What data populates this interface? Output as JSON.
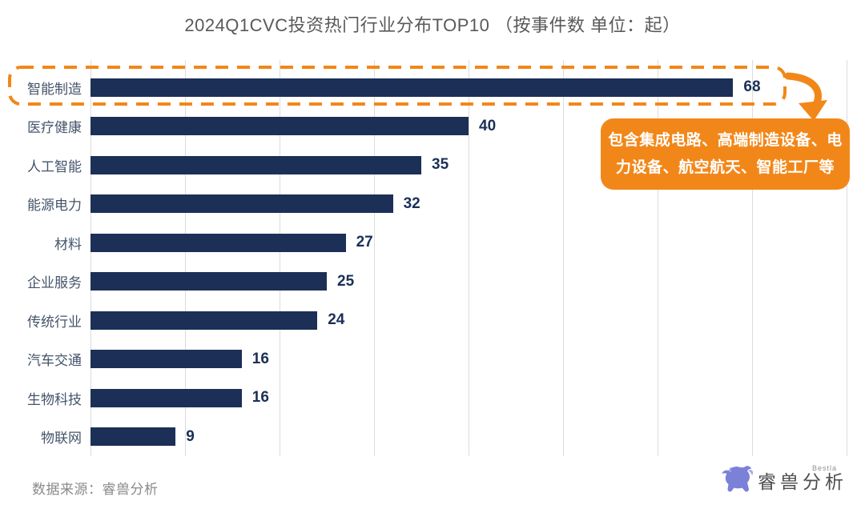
{
  "title": "2024Q1CVC投资热门行业分布TOP10 （按事件数 单位：起）",
  "chart_data": {
    "type": "bar",
    "orientation": "horizontal",
    "title": "2024Q1CVC投资热门行业分布TOP10 （按事件数 单位：起）",
    "categories": [
      "智能制造",
      "医疗健康",
      "人工智能",
      "能源电力",
      "材料",
      "企业服务",
      "传统行业",
      "汽车交通",
      "生物科技",
      "物联网"
    ],
    "values": [
      68,
      40,
      35,
      32,
      27,
      25,
      24,
      16,
      16,
      9
    ],
    "unit": "起",
    "xlim": [
      0,
      80
    ],
    "gridline_interval": 10,
    "grid": true,
    "legend": false,
    "bar_color": "#1B2F57",
    "highlight_category": "智能制造",
    "highlight_annotation": "包含集成电路、高端制造设备、电力设备、航空航天、智能工厂等"
  },
  "callout": {
    "line1": "包含集成电路、高端制造设备、电",
    "line2": "力设备、航空航天、智能工厂等"
  },
  "source": "数据来源：睿兽分析",
  "logo": {
    "text": "睿兽分析",
    "subtext": "Bestla"
  },
  "colors": {
    "accent": "#F28719",
    "bar": "#1B2F57",
    "title_text": "#595959",
    "category_text": "#44546A",
    "gridline": "#DCDCDC",
    "source_text": "#8A8A8A",
    "callout_text": "#FFFFFF",
    "logo_icon": "#7B81D8"
  }
}
